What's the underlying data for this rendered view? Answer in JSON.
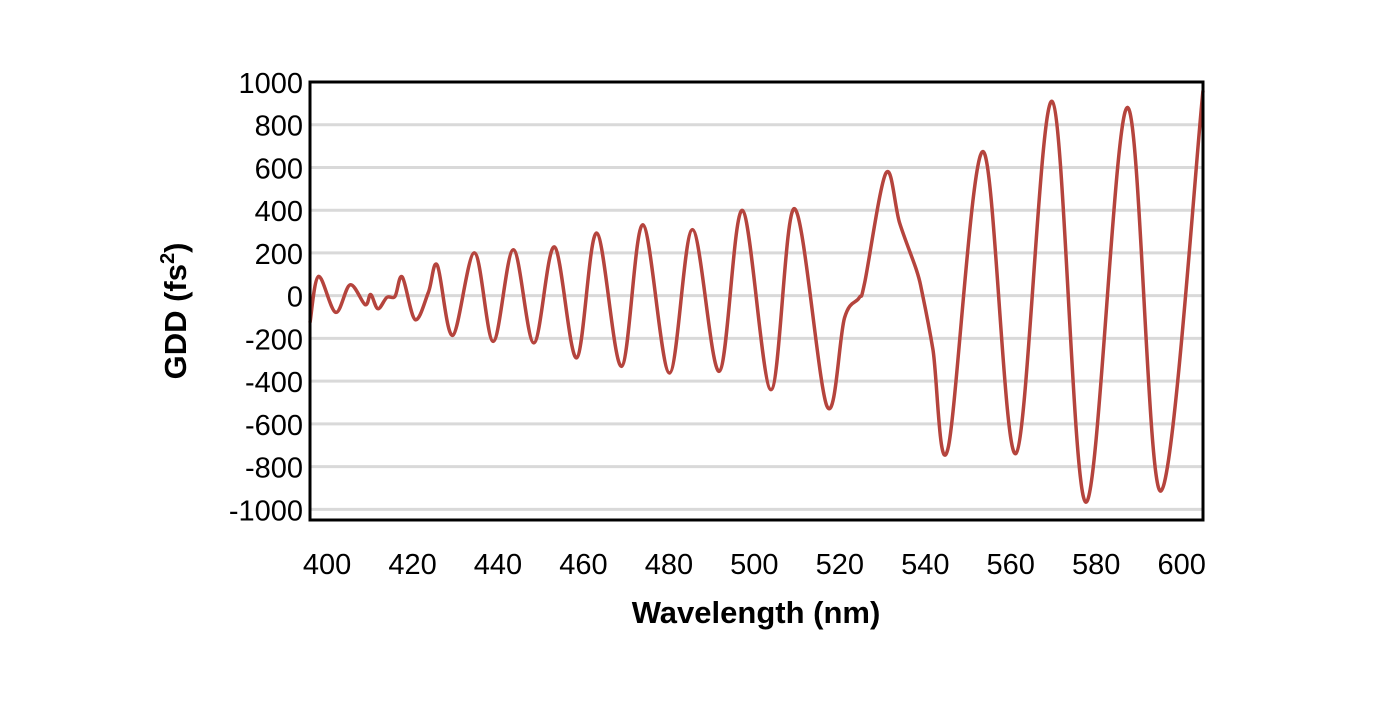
{
  "chart_data": {
    "type": "line",
    "title": "",
    "xlabel": "Wavelength (nm)",
    "ylabel_main": "GDD (fs",
    "ylabel_sup": "2",
    "ylabel_close": ")",
    "xlim": [
      396,
      605
    ],
    "ylim": [
      -1050,
      1000
    ],
    "xticks": [
      400,
      420,
      440,
      460,
      480,
      500,
      520,
      540,
      560,
      580,
      600
    ],
    "yticks": [
      1000,
      800,
      600,
      400,
      200,
      0,
      -200,
      -400,
      -600,
      -800,
      -1000
    ],
    "grid": "horizontal",
    "legend": "none",
    "colors": {
      "line": "#b5443d",
      "grid": "#d9d9d9",
      "frame": "#000000"
    },
    "series": [
      {
        "x": [
          396,
          398,
          402,
          405.4,
          408.9,
          410.2,
          411.9,
          414,
          415.9,
          417.6,
          420.6,
          423.7,
          425.8,
          429.4,
          434.5,
          438.9,
          443.6,
          448.4,
          453.2,
          458.4,
          463.1,
          468.9,
          473.9,
          480.1,
          485.5,
          491.8,
          497.2,
          503.9,
          509.4,
          517.0,
          521.1,
          524.5,
          525.8,
          530.8,
          534.0,
          537.9,
          539.2,
          541.8,
          545.3,
          553.5,
          561.2,
          569.7,
          577.6,
          587.3,
          595.1,
          605
        ],
        "y": [
          -126,
          90,
          -78,
          51,
          -42,
          5,
          -61,
          -8,
          -3,
          87,
          -112,
          15,
          142,
          -186,
          200,
          -214,
          215,
          -221,
          228,
          -291,
          293,
          -331,
          332,
          -362,
          309,
          -354,
          399,
          -440,
          407,
          -518,
          -104,
          -11,
          59,
          574,
          340,
          122,
          20,
          -253,
          -717,
          675,
          -739,
          909,
          -967,
          881,
          -915,
          960
        ]
      }
    ]
  }
}
